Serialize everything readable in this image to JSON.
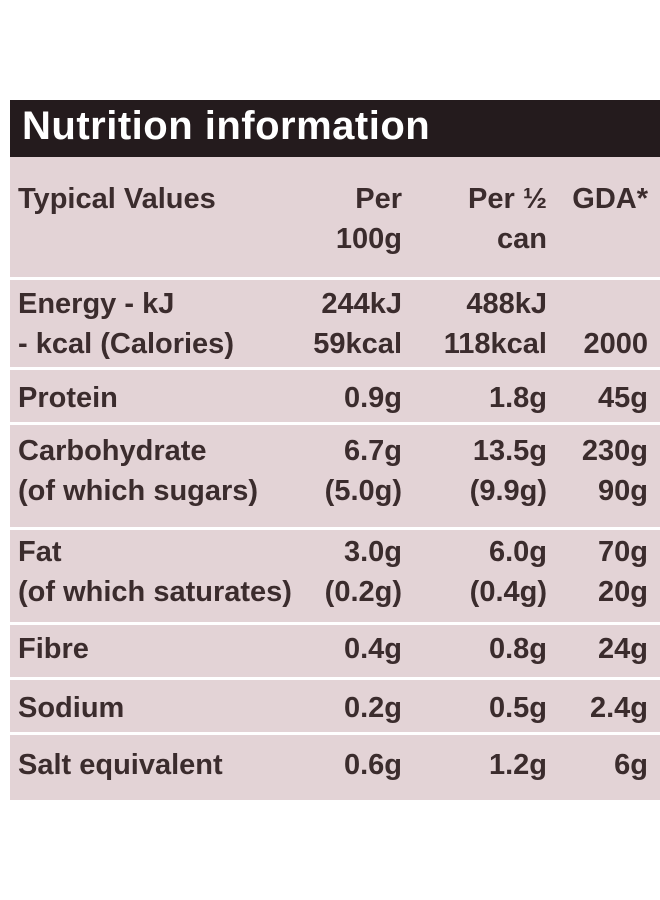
{
  "header": {
    "title": "Nutrition information"
  },
  "table": {
    "columns": [
      [
        "Typical Values"
      ],
      [
        "Per",
        "100g"
      ],
      [
        "Per ½",
        "can"
      ],
      [
        "GDA*"
      ]
    ],
    "groups": [
      [
        [
          "Energy - kJ",
          "244kJ",
          "488kJ",
          null
        ],
        [
          "- kcal (Calories)",
          "59kcal",
          "118kcal",
          "2000"
        ]
      ],
      [
        [
          "Protein",
          "0.9g",
          "1.8g",
          "45g"
        ]
      ],
      [
        [
          "Carbohydrate",
          "6.7g",
          "13.5g",
          "230g"
        ],
        [
          "(of which sugars)",
          "(5.0g)",
          "(9.9g)",
          "90g"
        ]
      ],
      [
        [
          "Fat",
          "3.0g",
          "6.0g",
          "70g"
        ],
        [
          "(of which saturates)",
          "(0.2g)",
          "(0.4g)",
          "20g"
        ]
      ],
      [
        [
          "Fibre",
          "0.4g",
          "0.8g",
          "24g"
        ]
      ],
      [
        [
          "Sodium",
          "0.2g",
          "0.5g",
          "2.4g"
        ]
      ],
      [
        [
          "Salt equivalent",
          "0.6g",
          "1.2g",
          "6g"
        ]
      ]
    ]
  }
}
